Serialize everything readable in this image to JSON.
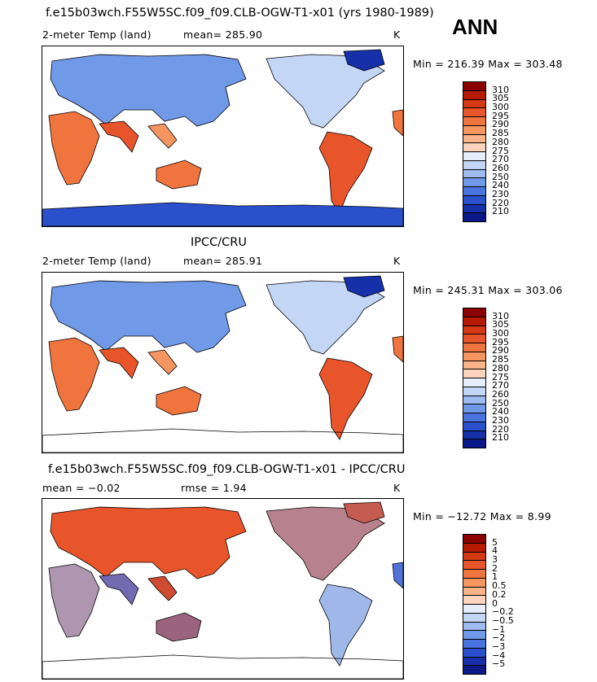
{
  "season": "ANN",
  "panels": [
    {
      "title": "f.e15b03wch.F55W5SC.f09_f09.CLB-OGW-T1-x01 (yrs 1980-1989)",
      "variable": "2-meter Temp (land)",
      "stat": "mean= 285.90",
      "stat2": "",
      "units": "K",
      "minmax": "Min = 216.39  Max = 303.48",
      "levels": [
        "310",
        "305",
        "300",
        "295",
        "290",
        "285",
        "280",
        "275",
        "270",
        "260",
        "250",
        "240",
        "230",
        "220",
        "210"
      ],
      "colors": [
        "#8b0000",
        "#b81a00",
        "#d63a14",
        "#e8552a",
        "#f0743e",
        "#f59560",
        "#fab48a",
        "#fdd5bc",
        "#e6eefb",
        "#c4d6f6",
        "#9ebcf0",
        "#7099e8",
        "#4a73e0",
        "#2a50cc",
        "#1530a8",
        "#0a1888"
      ],
      "antarctica": true
    },
    {
      "title": "IPCC/CRU",
      "variable": "2-meter Temp (land)",
      "stat": "mean= 285.91",
      "stat2": "",
      "units": "K",
      "minmax": "Min = 245.31  Max = 303.06",
      "levels": [
        "310",
        "305",
        "300",
        "295",
        "290",
        "285",
        "280",
        "275",
        "270",
        "260",
        "250",
        "240",
        "230",
        "220",
        "210"
      ],
      "colors": [
        "#8b0000",
        "#b81a00",
        "#d63a14",
        "#e8552a",
        "#f0743e",
        "#f59560",
        "#fab48a",
        "#fdd5bc",
        "#e6eefb",
        "#c4d6f6",
        "#9ebcf0",
        "#7099e8",
        "#4a73e0",
        "#2a50cc",
        "#1530a8",
        "#0a1888"
      ],
      "antarctica": false
    },
    {
      "title": "f.e15b03wch.F55W5SC.f09_f09.CLB-OGW-T1-x01 - IPCC/CRU",
      "variable": "",
      "stat": "mean =   −0.02",
      "stat2": "rmse =    1.94",
      "units": "K",
      "minmax": "Min = −12.72  Max =    8.99",
      "levels": [
        "5",
        "4",
        "3",
        "2",
        "1",
        "0.5",
        "0.2",
        "0",
        "−0.2",
        "−0.5",
        "−1",
        "−2",
        "−3",
        "−4",
        "−5"
      ],
      "colors": [
        "#8b0000",
        "#b81a00",
        "#d63a14",
        "#e8552a",
        "#f0743e",
        "#f59560",
        "#fab48a",
        "#fdd5bc",
        "#e6eefb",
        "#c4d6f6",
        "#9ebcf0",
        "#7099e8",
        "#4a73e0",
        "#2a50cc",
        "#1530a8",
        "#0a1888"
      ],
      "antarctica": false
    }
  ]
}
